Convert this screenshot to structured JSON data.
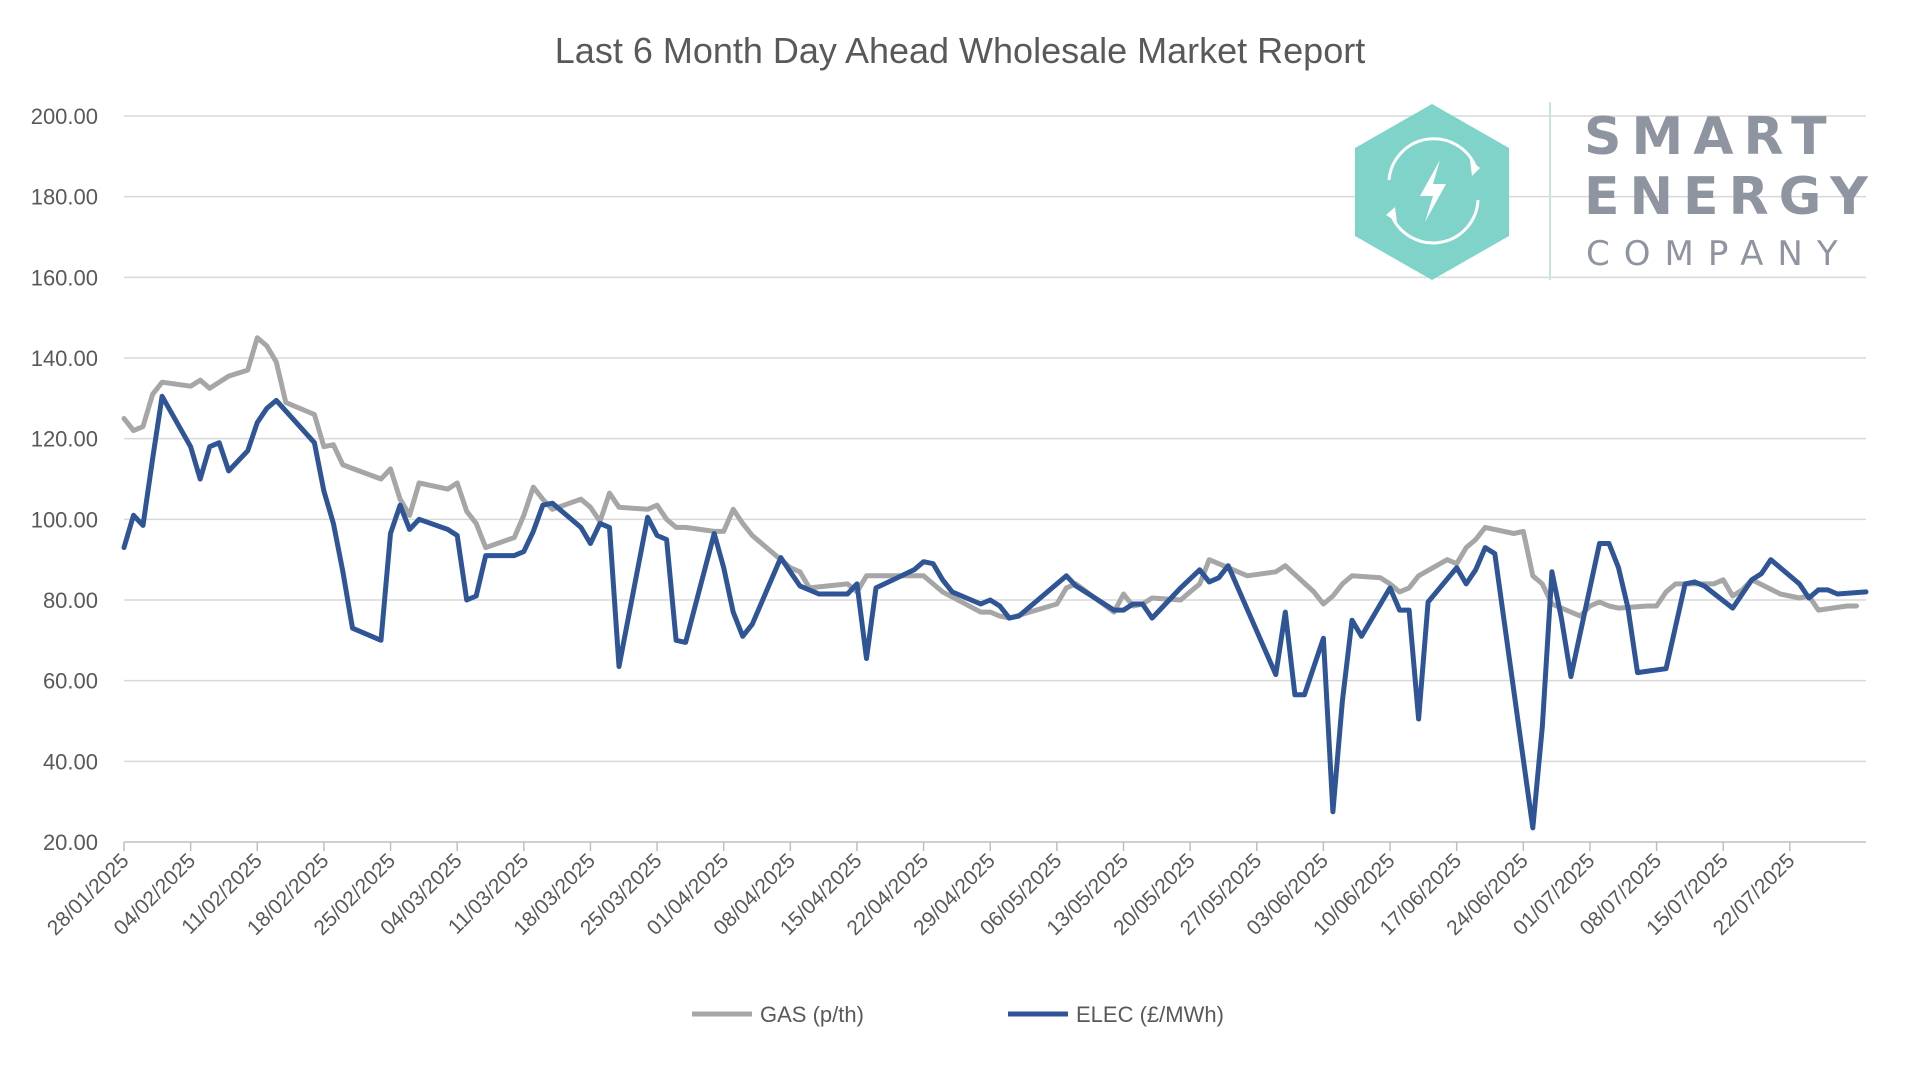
{
  "chart_data": {
    "type": "line",
    "title": "Last 6 Month Day Ahead Wholesale Market Report",
    "ylim": [
      20,
      200
    ],
    "yticks": [
      "200.00",
      "180.00",
      "160.00",
      "140.00",
      "120.00",
      "100.00",
      "80.00",
      "60.00",
      "40.00",
      "20.00"
    ],
    "xlim": [
      "2025-01-28",
      "2025-07-30"
    ],
    "xticks": [
      "28/01/2025",
      "04/02/2025",
      "11/02/2025",
      "18/02/2025",
      "25/02/2025",
      "04/03/2025",
      "11/03/2025",
      "18/03/2025",
      "25/03/2025",
      "01/04/2025",
      "08/04/2025",
      "15/04/2025",
      "22/04/2025",
      "29/04/2025",
      "06/05/2025",
      "13/05/2025",
      "20/05/2025",
      "27/05/2025",
      "03/06/2025",
      "10/06/2025",
      "17/06/2025",
      "24/06/2025",
      "01/07/2025",
      "08/07/2025",
      "15/07/2025",
      "22/07/2025"
    ],
    "grid": true,
    "legend_position": "bottom",
    "series": [
      {
        "name": "GAS (p/th)",
        "color": "#a6a6a6",
        "points": [
          [
            "2025-01-28",
            125.0
          ],
          [
            "2025-01-29",
            122.0
          ],
          [
            "2025-01-30",
            123.0
          ],
          [
            "2025-01-31",
            131.0
          ],
          [
            "2025-02-01",
            134.0
          ],
          [
            "2025-02-04",
            133.0
          ],
          [
            "2025-02-05",
            134.5
          ],
          [
            "2025-02-06",
            132.5
          ],
          [
            "2025-02-08",
            135.5
          ],
          [
            "2025-02-10",
            137.0
          ],
          [
            "2025-02-11",
            145.0
          ],
          [
            "2025-02-12",
            143.0
          ],
          [
            "2025-02-13",
            139.0
          ],
          [
            "2025-02-14",
            129.0
          ],
          [
            "2025-02-17",
            126.0
          ],
          [
            "2025-02-18",
            118.0
          ],
          [
            "2025-02-19",
            118.5
          ],
          [
            "2025-02-20",
            113.5
          ],
          [
            "2025-02-24",
            110.0
          ],
          [
            "2025-02-25",
            112.5
          ],
          [
            "2025-02-26",
            105.0
          ],
          [
            "2025-02-27",
            101.0
          ],
          [
            "2025-02-28",
            109.0
          ],
          [
            "2025-03-03",
            107.5
          ],
          [
            "2025-03-04",
            109.0
          ],
          [
            "2025-03-05",
            102.0
          ],
          [
            "2025-03-06",
            99.0
          ],
          [
            "2025-03-07",
            93.0
          ],
          [
            "2025-03-10",
            95.5
          ],
          [
            "2025-03-11",
            101.0
          ],
          [
            "2025-03-12",
            108.0
          ],
          [
            "2025-03-13",
            105.0
          ],
          [
            "2025-03-14",
            102.5
          ],
          [
            "2025-03-17",
            105.0
          ],
          [
            "2025-03-18",
            103.0
          ],
          [
            "2025-03-19",
            99.5
          ],
          [
            "2025-03-20",
            106.5
          ],
          [
            "2025-03-21",
            103.0
          ],
          [
            "2025-03-24",
            102.5
          ],
          [
            "2025-03-25",
            103.5
          ],
          [
            "2025-03-26",
            100.0
          ],
          [
            "2025-03-27",
            98.0
          ],
          [
            "2025-03-28",
            98.0
          ],
          [
            "2025-03-31",
            97.0
          ],
          [
            "2025-04-01",
            97.0
          ],
          [
            "2025-04-02",
            102.5
          ],
          [
            "2025-04-03",
            99.0
          ],
          [
            "2025-04-04",
            96.0
          ],
          [
            "2025-04-07",
            90.0
          ],
          [
            "2025-04-08",
            88.0
          ],
          [
            "2025-04-09",
            87.0
          ],
          [
            "2025-04-10",
            83.0
          ],
          [
            "2025-04-14",
            84.0
          ],
          [
            "2025-04-15",
            82.0
          ],
          [
            "2025-04-16",
            86.0
          ],
          [
            "2025-04-22",
            86.0
          ],
          [
            "2025-04-23",
            84.0
          ],
          [
            "2025-04-24",
            82.0
          ],
          [
            "2025-04-28",
            77.0
          ],
          [
            "2025-04-29",
            77.0
          ],
          [
            "2025-04-30",
            76.0
          ],
          [
            "2025-05-01",
            75.5
          ],
          [
            "2025-05-06",
            79.0
          ],
          [
            "2025-05-07",
            83.0
          ],
          [
            "2025-05-08",
            84.0
          ],
          [
            "2025-05-12",
            77.0
          ],
          [
            "2025-05-13",
            81.5
          ],
          [
            "2025-05-14",
            78.5
          ],
          [
            "2025-05-15",
            79.0
          ],
          [
            "2025-05-16",
            80.5
          ],
          [
            "2025-05-19",
            80.0
          ],
          [
            "2025-05-20",
            82.0
          ],
          [
            "2025-05-21",
            84.0
          ],
          [
            "2025-05-22",
            90.0
          ],
          [
            "2025-05-23",
            89.0
          ],
          [
            "2025-05-26",
            86.0
          ],
          [
            "2025-05-29",
            87.0
          ],
          [
            "2025-05-30",
            88.5
          ],
          [
            "2025-06-02",
            82.0
          ],
          [
            "2025-06-03",
            79.0
          ],
          [
            "2025-06-04",
            81.0
          ],
          [
            "2025-06-05",
            84.0
          ],
          [
            "2025-06-06",
            86.0
          ],
          [
            "2025-06-09",
            85.5
          ],
          [
            "2025-06-10",
            84.0
          ],
          [
            "2025-06-11",
            82.0
          ],
          [
            "2025-06-12",
            83.0
          ],
          [
            "2025-06-13",
            86.0
          ],
          [
            "2025-06-16",
            90.0
          ],
          [
            "2025-06-17",
            89.0
          ],
          [
            "2025-06-18",
            93.0
          ],
          [
            "2025-06-19",
            95.0
          ],
          [
            "2025-06-20",
            98.0
          ],
          [
            "2025-06-23",
            96.5
          ],
          [
            "2025-06-24",
            97.0
          ],
          [
            "2025-06-25",
            86.0
          ],
          [
            "2025-06-26",
            84.0
          ],
          [
            "2025-06-27",
            79.0
          ],
          [
            "2025-06-30",
            76.0
          ],
          [
            "2025-07-01",
            78.5
          ],
          [
            "2025-07-02",
            79.5
          ],
          [
            "2025-07-03",
            78.5
          ],
          [
            "2025-07-04",
            78.0
          ],
          [
            "2025-07-07",
            78.5
          ],
          [
            "2025-07-08",
            78.5
          ],
          [
            "2025-07-09",
            82.0
          ],
          [
            "2025-07-10",
            84.0
          ],
          [
            "2025-07-11",
            84.0
          ],
          [
            "2025-07-14",
            84.0
          ],
          [
            "2025-07-15",
            85.0
          ],
          [
            "2025-07-16",
            81.0
          ],
          [
            "2025-07-17",
            82.5
          ],
          [
            "2025-07-18",
            85.0
          ],
          [
            "2025-07-21",
            81.5
          ],
          [
            "2025-07-22",
            81.0
          ],
          [
            "2025-07-23",
            80.5
          ],
          [
            "2025-07-24",
            81.0
          ],
          [
            "2025-07-25",
            77.5
          ],
          [
            "2025-07-28",
            78.5
          ],
          [
            "2025-07-29",
            78.5
          ]
        ]
      },
      {
        "name": "ELEC (£/MWh)",
        "color": "#2f5597",
        "points": [
          [
            "2025-01-28",
            93.0
          ],
          [
            "2025-01-29",
            101.0
          ],
          [
            "2025-01-30",
            98.5
          ],
          [
            "2025-01-31",
            115.0
          ],
          [
            "2025-02-01",
            130.5
          ],
          [
            "2025-02-04",
            118.0
          ],
          [
            "2025-02-05",
            110.0
          ],
          [
            "2025-02-06",
            118.0
          ],
          [
            "2025-02-07",
            119.0
          ],
          [
            "2025-02-08",
            112.0
          ],
          [
            "2025-02-10",
            117.0
          ],
          [
            "2025-02-11",
            124.0
          ],
          [
            "2025-02-12",
            127.5
          ],
          [
            "2025-02-13",
            129.5
          ],
          [
            "2025-02-17",
            119.0
          ],
          [
            "2025-02-18",
            107.0
          ],
          [
            "2025-02-19",
            99.0
          ],
          [
            "2025-02-20",
            87.0
          ],
          [
            "2025-02-21",
            73.0
          ],
          [
            "2025-02-24",
            70.0
          ],
          [
            "2025-02-25",
            96.5
          ],
          [
            "2025-02-26",
            103.5
          ],
          [
            "2025-02-27",
            97.5
          ],
          [
            "2025-02-28",
            100.0
          ],
          [
            "2025-03-03",
            97.5
          ],
          [
            "2025-03-04",
            96.0
          ],
          [
            "2025-03-05",
            80.0
          ],
          [
            "2025-03-06",
            81.0
          ],
          [
            "2025-03-07",
            91.0
          ],
          [
            "2025-03-10",
            91.0
          ],
          [
            "2025-03-11",
            92.0
          ],
          [
            "2025-03-12",
            97.0
          ],
          [
            "2025-03-13",
            103.5
          ],
          [
            "2025-03-14",
            104.0
          ],
          [
            "2025-03-17",
            98.0
          ],
          [
            "2025-03-18",
            94.0
          ],
          [
            "2025-03-19",
            99.0
          ],
          [
            "2025-03-20",
            98.0
          ],
          [
            "2025-03-21",
            63.5
          ],
          [
            "2025-03-24",
            100.5
          ],
          [
            "2025-03-25",
            96.0
          ],
          [
            "2025-03-26",
            95.0
          ],
          [
            "2025-03-27",
            70.0
          ],
          [
            "2025-03-28",
            69.5
          ],
          [
            "2025-03-31",
            96.5
          ],
          [
            "2025-04-01",
            88.0
          ],
          [
            "2025-04-02",
            77.0
          ],
          [
            "2025-04-03",
            71.0
          ],
          [
            "2025-04-04",
            74.0
          ],
          [
            "2025-04-07",
            90.5
          ],
          [
            "2025-04-08",
            87.0
          ],
          [
            "2025-04-09",
            83.5
          ],
          [
            "2025-04-11",
            81.5
          ],
          [
            "2025-04-14",
            81.5
          ],
          [
            "2025-04-15",
            84.0
          ],
          [
            "2025-04-16",
            65.5
          ],
          [
            "2025-04-17",
            83.0
          ],
          [
            "2025-04-21",
            87.5
          ],
          [
            "2025-04-22",
            89.5
          ],
          [
            "2025-04-23",
            89.0
          ],
          [
            "2025-04-24",
            85.0
          ],
          [
            "2025-04-25",
            82.0
          ],
          [
            "2025-04-28",
            79.0
          ],
          [
            "2025-04-29",
            80.0
          ],
          [
            "2025-04-30",
            78.5
          ],
          [
            "2025-05-01",
            75.5
          ],
          [
            "2025-05-02",
            76.0
          ],
          [
            "2025-05-07",
            86.0
          ],
          [
            "2025-05-08",
            83.5
          ],
          [
            "2025-05-12",
            77.5
          ],
          [
            "2025-05-13",
            77.5
          ],
          [
            "2025-05-14",
            79.0
          ],
          [
            "2025-05-15",
            79.0
          ],
          [
            "2025-05-16",
            75.5
          ],
          [
            "2025-05-19",
            83.0
          ],
          [
            "2025-05-21",
            87.5
          ],
          [
            "2025-05-22",
            84.5
          ],
          [
            "2025-05-23",
            85.5
          ],
          [
            "2025-05-24",
            88.5
          ],
          [
            "2025-05-29",
            61.5
          ],
          [
            "2025-05-30",
            77.0
          ],
          [
            "2025-05-31",
            56.5
          ],
          [
            "2025-06-01",
            56.5
          ],
          [
            "2025-06-03",
            70.5
          ],
          [
            "2025-06-04",
            27.5
          ],
          [
            "2025-06-05",
            55.0
          ],
          [
            "2025-06-06",
            75.0
          ],
          [
            "2025-06-07",
            71.0
          ],
          [
            "2025-06-10",
            83.0
          ],
          [
            "2025-06-11",
            77.5
          ],
          [
            "2025-06-12",
            77.5
          ],
          [
            "2025-06-13",
            50.5
          ],
          [
            "2025-06-14",
            79.5
          ],
          [
            "2025-06-17",
            88.0
          ],
          [
            "2025-06-18",
            84.0
          ],
          [
            "2025-06-19",
            87.5
          ],
          [
            "2025-06-20",
            93.0
          ],
          [
            "2025-06-21",
            91.5
          ],
          [
            "2025-06-25",
            23.5
          ],
          [
            "2025-06-26",
            48.5
          ],
          [
            "2025-06-27",
            87.0
          ],
          [
            "2025-06-28",
            75.5
          ],
          [
            "2025-06-29",
            61.0
          ],
          [
            "2025-07-02",
            94.0
          ],
          [
            "2025-07-03",
            94.0
          ],
          [
            "2025-07-04",
            88.0
          ],
          [
            "2025-07-05",
            78.0
          ],
          [
            "2025-07-06",
            62.0
          ],
          [
            "2025-07-09",
            63.0
          ],
          [
            "2025-07-11",
            84.0
          ],
          [
            "2025-07-12",
            84.5
          ],
          [
            "2025-07-13",
            83.5
          ],
          [
            "2025-07-16",
            78.0
          ],
          [
            "2025-07-18",
            85.0
          ],
          [
            "2025-07-19",
            86.5
          ],
          [
            "2025-07-20",
            90.0
          ],
          [
            "2025-07-23",
            84.0
          ],
          [
            "2025-07-24",
            80.5
          ],
          [
            "2025-07-25",
            82.5
          ],
          [
            "2025-07-26",
            82.5
          ],
          [
            "2025-07-27",
            81.5
          ],
          [
            "2025-07-30",
            82.0
          ]
        ]
      }
    ]
  },
  "logo": {
    "line1": "SMART",
    "line2": "ENERGY",
    "line3": "COMPANY",
    "hex_color": "#7fd3c9",
    "text_color": "#8f95a0",
    "icon": "lightning-bolt-icon"
  },
  "colors": {
    "grid": "#d9d9d9",
    "axis": "#bfbfbf",
    "text": "#595959"
  }
}
